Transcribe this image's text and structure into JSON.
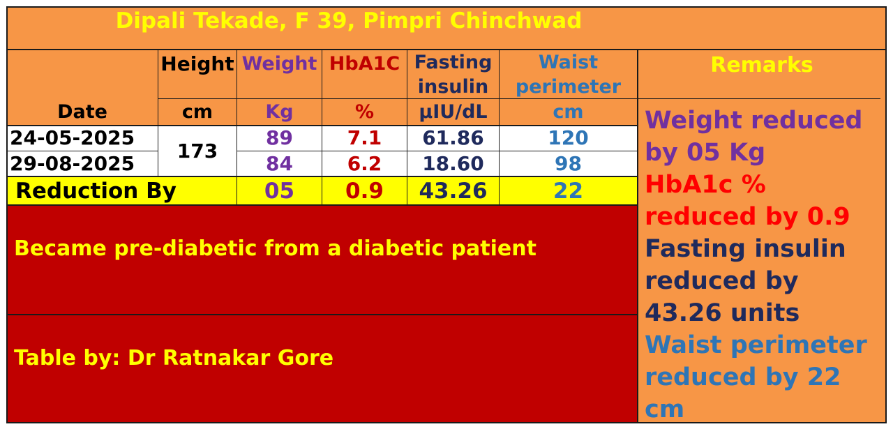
{
  "title": "Dipali Tekade, F 39, Pimpri Chinchwad",
  "columns": {
    "date": {
      "header": "Date",
      "unit": ""
    },
    "height": {
      "header": "Height",
      "unit": "cm"
    },
    "weight": {
      "header": "Weight",
      "unit": "Kg"
    },
    "hba1c": {
      "header": "HbA1C",
      "unit": "%"
    },
    "fasting_line1": "Fasting",
    "fasting_line2": "insulin",
    "fasting_unit": "µIU/dL",
    "waist_line1": "Waist",
    "waist_line2": "perimeter",
    "waist_unit": "cm"
  },
  "date_unit_header": "Date",
  "height_value": "173",
  "rows": [
    {
      "date": "24-05-2025",
      "weight": "89",
      "hba1c": "7.1",
      "fasting": "61.86",
      "waist": "120"
    },
    {
      "date": "29-08-2025",
      "weight": "84",
      "hba1c": "6.2",
      "fasting": "18.60",
      "waist": "98"
    }
  ],
  "reduction": {
    "label": "Reduction By",
    "weight": "05",
    "hba1c": "0.9",
    "fasting": "43.26",
    "waist": "22"
  },
  "note_main": "Became pre-diabetic from a diabetic patient",
  "note_credit": "Table by: Dr Ratnakar Gore",
  "remarks": {
    "header": "Remarks",
    "weight_line1": "Weight reduced",
    "weight_line2": "by 05 Kg",
    "hba1c_line1": "HbA1c %",
    "hba1c_line2": "reduced by 0.9",
    "fasting_line1": "Fasting insulin",
    "fasting_line2": "reduced by",
    "fasting_line3": "43.26 units",
    "waist_line1": "Waist perimeter",
    "waist_line2": "reduced by 22",
    "waist_line3": "cm"
  },
  "colors": {
    "orange": "#f79646",
    "yellow_band": "#ffff00",
    "dark_red": "#c00000",
    "weight": "#7030a0",
    "hba1c": "#c00000",
    "fasting": "#1f2a5c",
    "waist": "#2e75b6"
  }
}
